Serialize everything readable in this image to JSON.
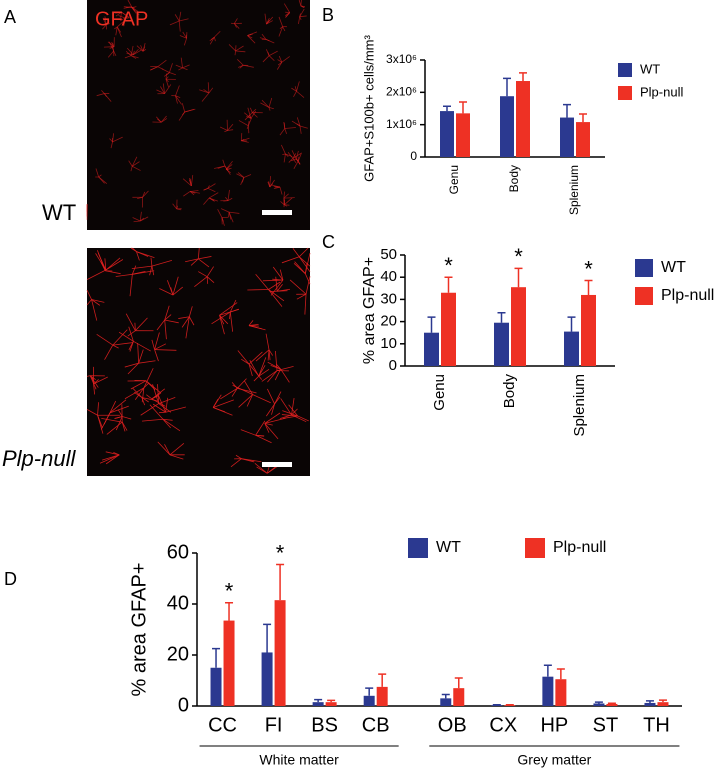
{
  "panel_labels": [
    "A",
    "B",
    "C",
    "D"
  ],
  "images": [
    {
      "stain": "GFAP",
      "label": "WT"
    },
    {
      "label": "Plp-null"
    }
  ],
  "chart_data": [
    {
      "type": "bar",
      "ylabel": "GFAP+S100b+ cells/mm³",
      "categories": [
        "Genu",
        "Body",
        "Splenium"
      ],
      "series": [
        {
          "name": "WT",
          "color": "#2b3990",
          "values": [
            1420000,
            1880000,
            1220000
          ],
          "errors": [
            150000,
            550000,
            400000
          ]
        },
        {
          "name": "Plp-null",
          "color": "#ee3124",
          "values": [
            1350000,
            2350000,
            1080000
          ],
          "errors": [
            350000,
            250000,
            250000
          ]
        }
      ],
      "ylim": [
        0,
        3000000
      ],
      "yticks": [
        0,
        {
          "value": 1000000,
          "label": "1x10⁶"
        },
        {
          "value": 2000000,
          "label": "2x10⁶"
        },
        {
          "value": 3000000,
          "label": "3x10⁶"
        }
      ]
    },
    {
      "type": "bar",
      "ylabel": "% area GFAP+",
      "categories": [
        "Genu",
        "Body",
        "Splenium"
      ],
      "series": [
        {
          "name": "WT",
          "color": "#2b3990",
          "values": [
            15,
            19.5,
            15.5
          ],
          "errors": [
            7,
            4.5,
            6.5
          ]
        },
        {
          "name": "Plp-null",
          "color": "#ee3124",
          "values": [
            33,
            35.5,
            32
          ],
          "errors": [
            7,
            8.5,
            6.5
          ]
        }
      ],
      "annotations": [
        "*",
        "*",
        "*"
      ],
      "ylim": [
        0,
        50
      ],
      "yticks": [
        0,
        10,
        20,
        30,
        40,
        50
      ]
    },
    {
      "type": "bar",
      "ylabel": "% area GFAP+",
      "categories": [
        "CC",
        "FI",
        "BS",
        "CB",
        "OB",
        "CX",
        "HP",
        "ST",
        "TH"
      ],
      "category_groups": [
        "White matter",
        "White matter",
        "White matter",
        "White matter",
        "Grey matter",
        "Grey matter",
        "Grey matter",
        "Grey matter",
        "Grey matter"
      ],
      "series": [
        {
          "name": "WT",
          "color": "#2b3990",
          "values": [
            15,
            21,
            1.5,
            4,
            3,
            0.3,
            11.5,
            1,
            1.2
          ],
          "errors": [
            7.5,
            11,
            1,
            3,
            1.5,
            0.2,
            4.5,
            0.5,
            0.8
          ]
        },
        {
          "name": "Plp-null",
          "color": "#ee3124",
          "values": [
            33.5,
            41.5,
            1.5,
            7.5,
            7,
            0.3,
            10.5,
            0.8,
            1.5
          ],
          "errors": [
            7,
            14,
            0.7,
            5,
            4,
            0.2,
            4,
            0.3,
            0.8
          ]
        }
      ],
      "annotations": [
        "*",
        "*",
        null,
        null,
        null,
        null,
        null,
        null,
        null
      ],
      "ylim": [
        0,
        60
      ],
      "yticks": [
        0,
        20,
        40,
        60
      ]
    }
  ]
}
